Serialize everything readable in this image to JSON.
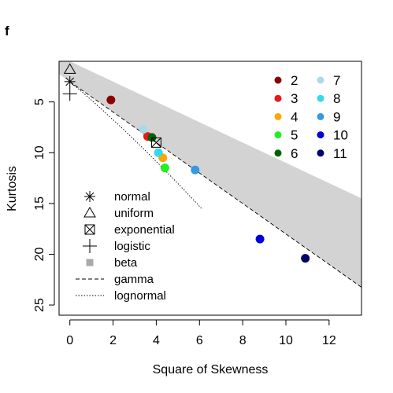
{
  "panel_label": "f",
  "chart_data": {
    "type": "scatter",
    "title": "",
    "xlabel": "Square of Skewness",
    "ylabel": "Kurtosis",
    "xlim": [
      -0.5,
      13.5
    ],
    "ylim": [
      26,
      1
    ],
    "y_axis_inverted": true,
    "x_ticks": [
      0,
      2,
      4,
      6,
      8,
      10,
      12
    ],
    "y_ticks": [
      5,
      10,
      15,
      20,
      25
    ],
    "grid": false,
    "reference_points": [
      {
        "name": "normal",
        "x": 0,
        "y": 3,
        "marker": "asterisk"
      },
      {
        "name": "uniform",
        "x": 0,
        "y": 1.8,
        "marker": "triangle"
      },
      {
        "name": "exponential",
        "x": 4,
        "y": 9,
        "marker": "boxed-x"
      },
      {
        "name": "logistic",
        "x": 0,
        "y": 4.2,
        "marker": "plus"
      }
    ],
    "beta_region": {
      "name": "beta",
      "color": "#d3d3d3",
      "lower_kurtosis": "x + 1",
      "upper_kurtosis": "1.5x + 3"
    },
    "curves": [
      {
        "name": "gamma",
        "style": "dashed",
        "equation": "kurtosis = 1.5 * skew^2 + 3"
      },
      {
        "name": "lognormal",
        "style": "dotted"
      }
    ],
    "series": [
      {
        "name": "2",
        "color": "#8b0000",
        "x": 1.9,
        "y": 4.8
      },
      {
        "name": "3",
        "color": "#e41a1c",
        "x": 3.6,
        "y": 8.4
      },
      {
        "name": "4",
        "color": "#ffa500",
        "x": 4.3,
        "y": 10.5
      },
      {
        "name": "5",
        "color": "#22ee22",
        "x": 4.4,
        "y": 11.5
      },
      {
        "name": "6",
        "color": "#006400",
        "x": 3.8,
        "y": 8.5
      },
      {
        "name": "7",
        "color": "#add8e6",
        "x": 3.4,
        "y": 7.7
      },
      {
        "name": "8",
        "color": "#38d8e8",
        "x": 4.1,
        "y": 10.0
      },
      {
        "name": "9",
        "color": "#3399e6",
        "x": 5.8,
        "y": 11.7
      },
      {
        "name": "10",
        "color": "#0000dd",
        "x": 8.8,
        "y": 18.5
      },
      {
        "name": "11",
        "color": "#00006b",
        "x": 10.9,
        "y": 20.4
      }
    ],
    "legend_upper_right": [
      "2",
      "3",
      "4",
      "5",
      "6",
      "7",
      "8",
      "9",
      "10",
      "11"
    ],
    "legend_lower_left": [
      "normal",
      "uniform",
      "exponential",
      "logistic",
      "beta",
      "gamma",
      "lognormal"
    ]
  }
}
